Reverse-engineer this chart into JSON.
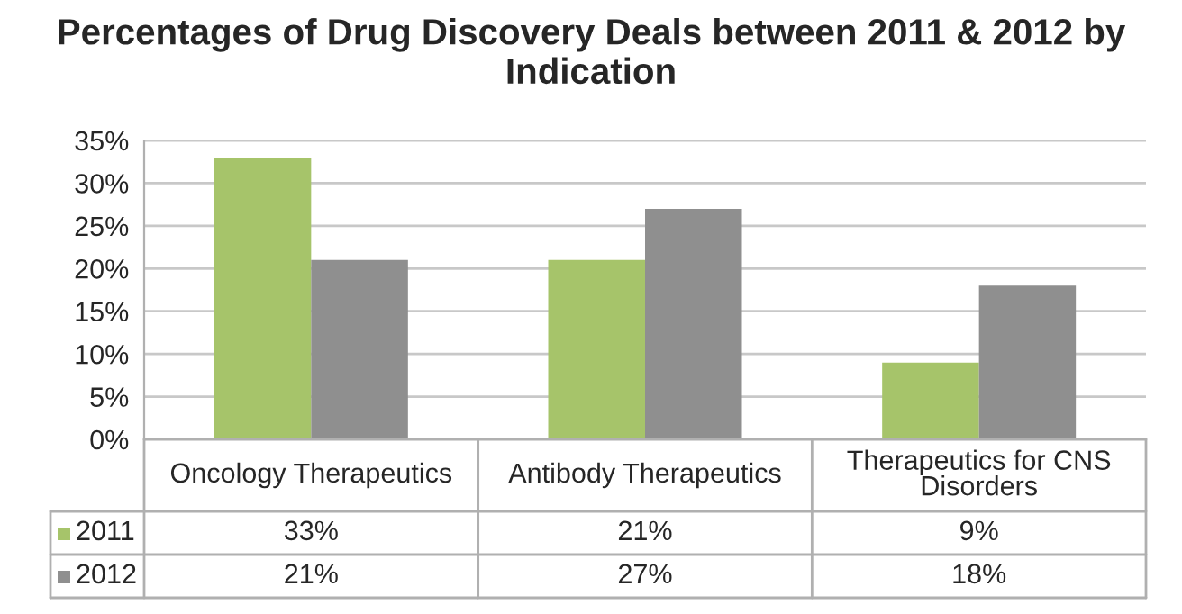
{
  "chart_data": {
    "type": "bar",
    "title": "Percentages of Drug Discovery Deals between 2011 & 2012 by Indication",
    "categories": [
      "Oncology Therapeutics",
      "Antibody Therapeutics",
      "Therapeutics for CNS Disorders"
    ],
    "series": [
      {
        "name": "2011",
        "color": "#a6c46a",
        "values": [
          33,
          21,
          9
        ],
        "value_labels": [
          "33%",
          "21%",
          "9%"
        ]
      },
      {
        "name": "2012",
        "color": "#8f8f8f",
        "values": [
          21,
          27,
          18
        ],
        "value_labels": [
          "21%",
          "27%",
          "18%"
        ]
      }
    ],
    "ylim": [
      0,
      35
    ],
    "yticks": [
      {
        "value": 0,
        "label": "0%"
      },
      {
        "value": 5,
        "label": "5%"
      },
      {
        "value": 10,
        "label": "10%"
      },
      {
        "value": 15,
        "label": "15%"
      },
      {
        "value": 20,
        "label": "20%"
      },
      {
        "value": 25,
        "label": "25%"
      },
      {
        "value": 30,
        "label": "30%"
      },
      {
        "value": 35,
        "label": "35%"
      }
    ],
    "grid": "y",
    "legend": "bottom"
  }
}
